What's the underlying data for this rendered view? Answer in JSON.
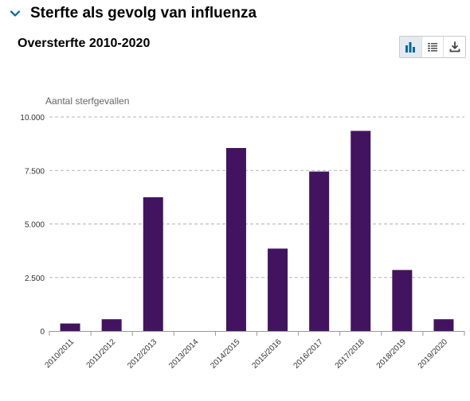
{
  "section": {
    "title": "Sterfte als gevolg van influenza"
  },
  "toolbar": {
    "chart_view": "chart-view",
    "table_view": "table-view",
    "download": "download"
  },
  "colors": {
    "bar": "#42145f",
    "chevron": "#01689b",
    "grid": "#b4b4b4",
    "icon_active": "#01689b",
    "icon": "#555555"
  },
  "chart_data": {
    "type": "bar",
    "title": "Oversterfte 2010-2020",
    "ylabel": "Aantal sterfgevallen",
    "xlabel": "",
    "ylim": [
      0,
      10000
    ],
    "yticks": [
      {
        "value": 0,
        "label": "0"
      },
      {
        "value": 2500,
        "label": "2.500"
      },
      {
        "value": 5000,
        "label": "5.000"
      },
      {
        "value": 7500,
        "label": "7.500"
      },
      {
        "value": 10000,
        "label": "10.000"
      }
    ],
    "grid": true,
    "categories": [
      "2010/2011",
      "2011/2012",
      "2012/2013",
      "2013/2014",
      "2014/2015",
      "2015/2016",
      "2016/2017",
      "2017/2018",
      "2018/2019",
      "2019/2020"
    ],
    "values": [
      350,
      550,
      6250,
      0,
      8550,
      3850,
      7450,
      9350,
      2850,
      550
    ]
  }
}
